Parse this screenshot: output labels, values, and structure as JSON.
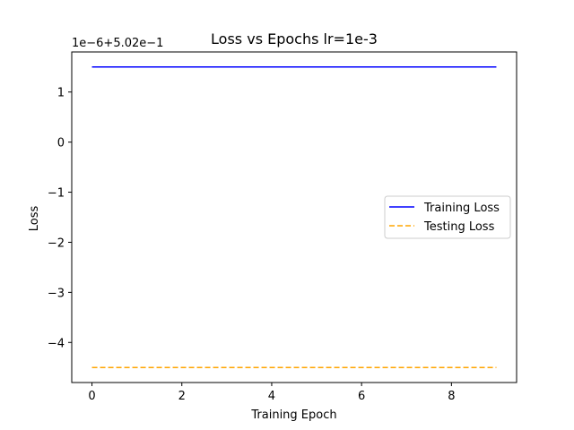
{
  "chart_data": {
    "type": "line",
    "title": "Loss vs Epochs lr=1e-3",
    "xlabel": "Training Epoch",
    "ylabel": "Loss",
    "offset_text": "1e−6+5.02e−1",
    "x": [
      0,
      1,
      2,
      3,
      4,
      5,
      6,
      7,
      8,
      9
    ],
    "xlim": [
      -0.45,
      9.45
    ],
    "ylim": [
      -4.8,
      1.8
    ],
    "x_ticks": [
      0,
      2,
      4,
      6,
      8
    ],
    "x_tick_labels": [
      "0",
      "2",
      "4",
      "6",
      "8"
    ],
    "y_ticks": [
      1,
      0,
      -1,
      -2,
      -3,
      -4
    ],
    "y_tick_labels": [
      "1",
      "0",
      "−1",
      "−2",
      "−3",
      "−4"
    ],
    "series": [
      {
        "name": "Training Loss",
        "values": [
          1.5,
          1.5,
          1.5,
          1.5,
          1.5,
          1.5,
          1.5,
          1.5,
          1.5,
          1.5
        ],
        "color": "#0000ff",
        "style": "solid"
      },
      {
        "name": "Testing Loss",
        "values": [
          -4.5,
          -4.5,
          -4.5,
          -4.5,
          -4.5,
          -4.5,
          -4.5,
          -4.5,
          -4.5,
          -4.5
        ],
        "color": "#ffa500",
        "style": "dashed"
      }
    ],
    "legend_position": "center-right",
    "grid": false
  }
}
